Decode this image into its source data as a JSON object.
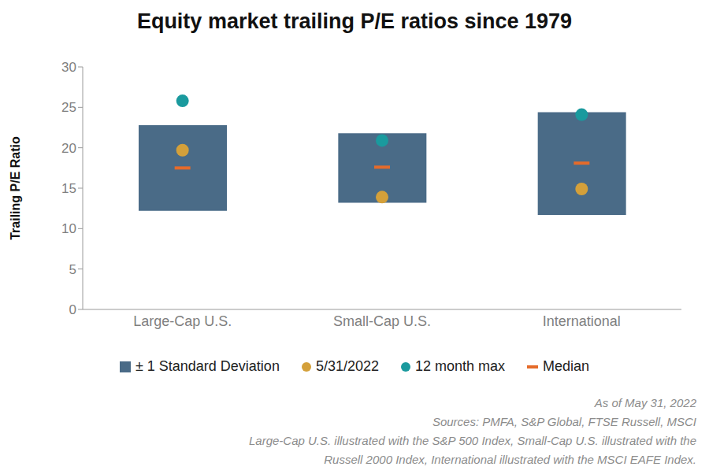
{
  "chart_data": {
    "type": "box",
    "title": "Equity market trailing P/E ratios since 1979",
    "y_label": "Trailing P/E Ratio",
    "categories": [
      "Large-Cap U.S.",
      "Small-Cap U.S.",
      "International"
    ],
    "series": [
      {
        "name": "± 1 Standard Deviation",
        "type": "range",
        "color": "#4a6b87",
        "low": [
          12.2,
          13.2,
          11.7
        ],
        "high": [
          22.8,
          21.8,
          24.4
        ]
      },
      {
        "name": "5/31/2022",
        "type": "scatter",
        "marker": "circle",
        "color": "#d4a03a",
        "values": [
          19.7,
          13.9,
          14.9
        ]
      },
      {
        "name": "12 month max",
        "type": "scatter",
        "marker": "circle",
        "color": "#1a9a9e",
        "values": [
          25.8,
          20.9,
          24.1
        ]
      },
      {
        "name": "Median",
        "type": "scatter",
        "marker": "dash",
        "color": "#e56b2a",
        "values": [
          17.5,
          17.6,
          18.1
        ]
      }
    ],
    "ylim": [
      0,
      30
    ],
    "yticks": [
      0,
      5,
      10,
      15,
      20,
      25,
      30
    ],
    "grid": false,
    "legend": "bottom",
    "annotations": [
      "As of May 31, 2022",
      "Sources: PMFA, S&P Global, FTSE Russell, MSCI",
      "Large-Cap U.S. illustrated with the S&P 500 Index, Small-Cap U.S. illustrated with the",
      "Russell 2000 Index, International illustrated with the MSCI EAFE Index."
    ]
  }
}
